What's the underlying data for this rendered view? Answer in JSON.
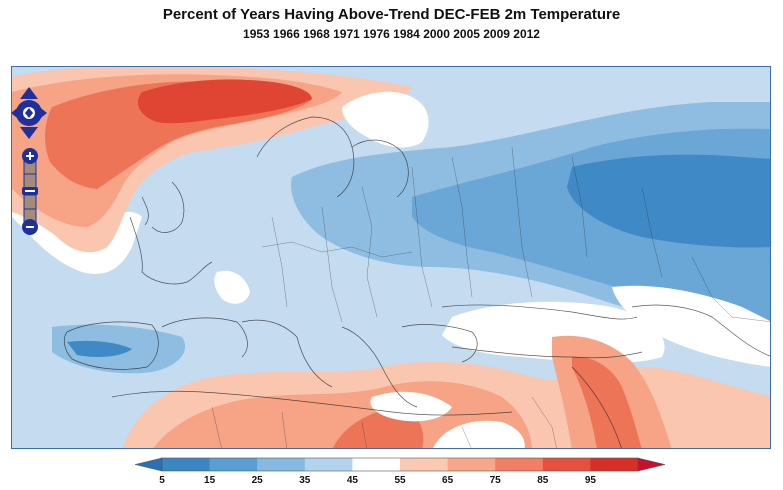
{
  "title": "Percent of Years Having Above-Trend DEC-FEB 2m Temperature",
  "subtitle": "1953 1966 1968 1971 1976 1984 2000 2005 2009 2012",
  "colorbar": {
    "ticks": [
      "5",
      "15",
      "25",
      "35",
      "45",
      "55",
      "65",
      "75",
      "85",
      "95"
    ],
    "colors": [
      "#3d86c4",
      "#5a9fd2",
      "#86bae0",
      "#b4d3ee",
      "#ffffff",
      "#fccab3",
      "#f8a78b",
      "#f27f64",
      "#e7503f",
      "#d62f27"
    ],
    "low_arrow_color": "#2c70b3",
    "high_arrow_color": "#c8102e"
  },
  "map": {
    "colors": {
      "ocean_base": "#b9d5ee",
      "light_blue": "#c6dcf1",
      "mid_blue": "#8fbde2",
      "blue": "#6aa6d6",
      "deep_blue": "#3f89c6",
      "white": "#ffffff",
      "light_red": "#fbc6b0",
      "mid_red": "#f6a386",
      "red": "#ee7458",
      "deep_red": "#e04433"
    },
    "controls": {
      "pan": [
        "pan-up",
        "pan-left",
        "pan-right",
        "pan-down"
      ],
      "zoom": [
        "zoom-in",
        "zoom-out"
      ]
    }
  }
}
